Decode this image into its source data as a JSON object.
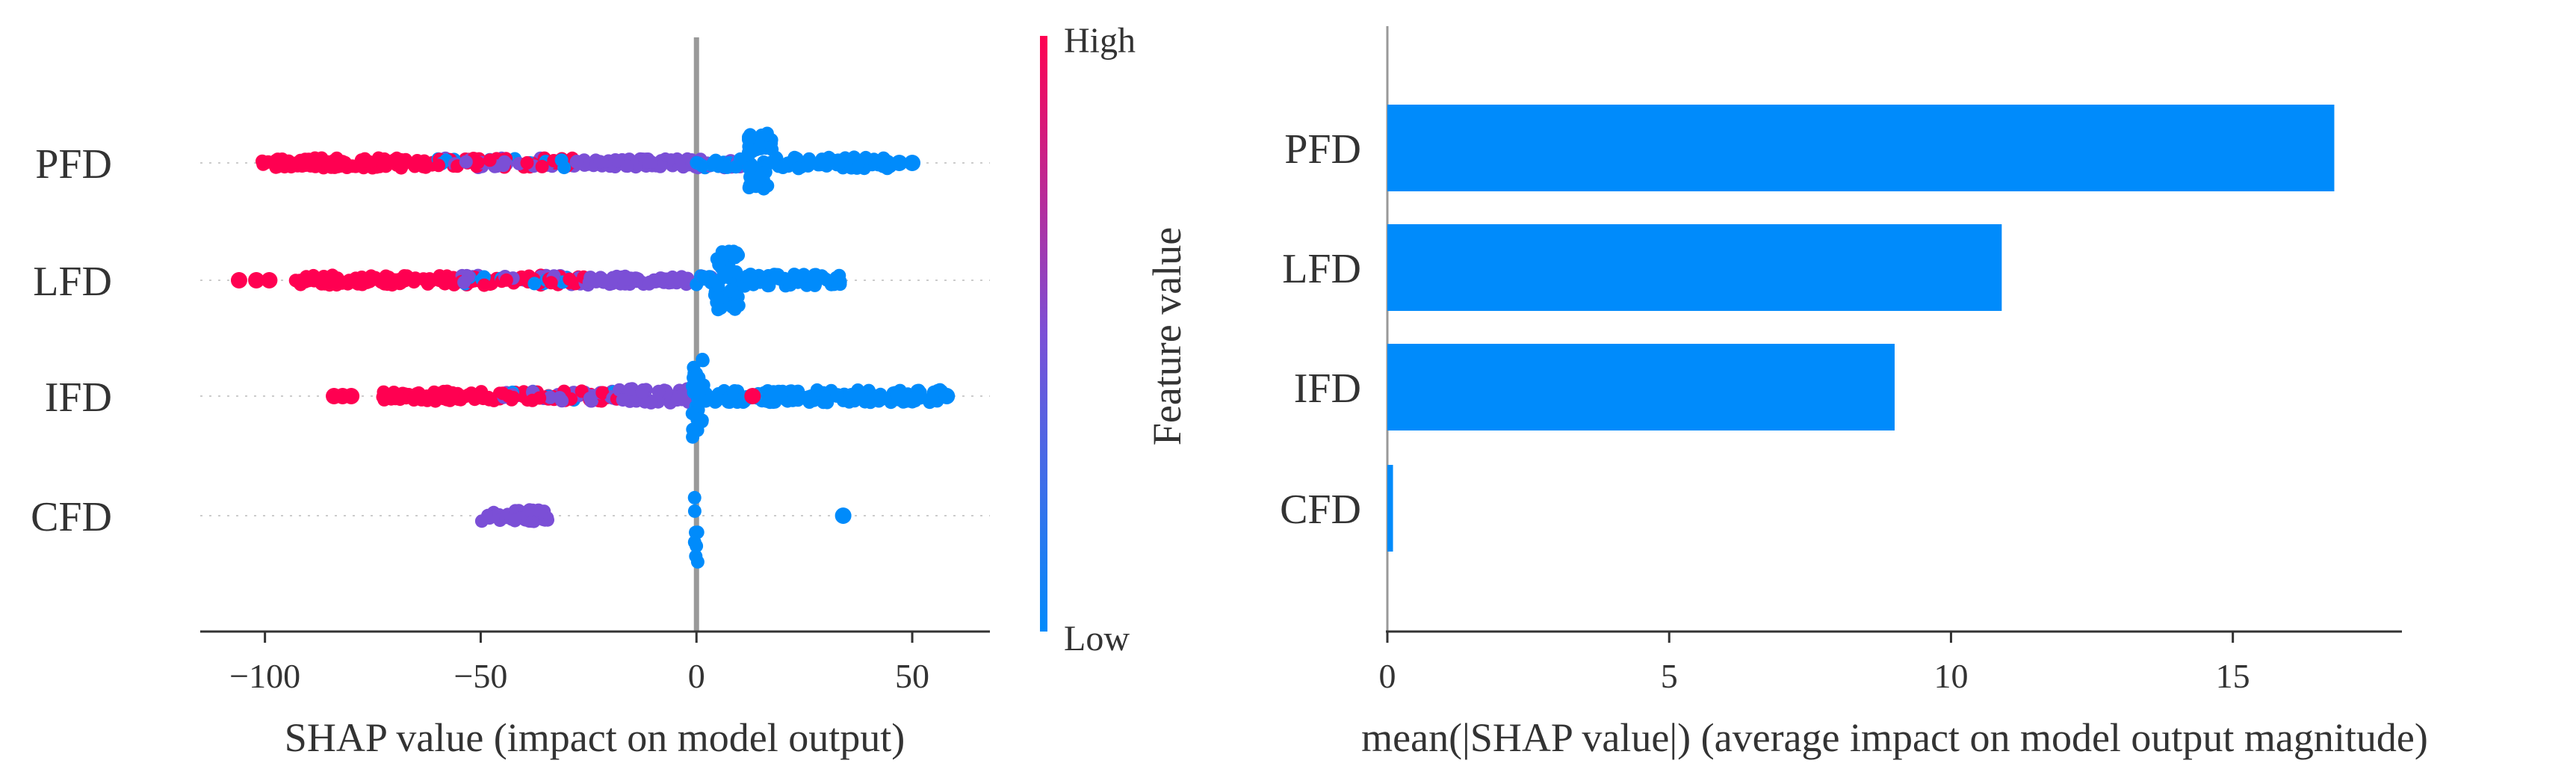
{
  "chart_data": [
    {
      "type": "scatter",
      "subtype": "shap-beeswarm",
      "xlabel": "SHAP value (impact on model output)",
      "xlim": [
        -115,
        68
      ],
      "xticks": [
        -100,
        -50,
        0,
        50
      ],
      "xtick_labels": [
        "−100",
        "−50",
        "0",
        "50"
      ],
      "zero_line": 0,
      "features": [
        "PFD",
        "LFD",
        "IFD",
        "CFD"
      ],
      "colors": {
        "high": "#ff0051",
        "mid": "#7b4fd6",
        "low": "#008bfb"
      },
      "colorbar": {
        "title": "Feature value",
        "high_label": "High",
        "low_label": "Low"
      },
      "series": [
        {
          "name": "PFD",
          "segments": [
            {
              "from": -101,
              "to": -60,
              "color": "high",
              "spread": 0.1
            },
            {
              "from": -60,
              "to": -28,
              "color": "mix",
              "spread": 0.1
            },
            {
              "from": -28,
              "to": 0,
              "color": "mid",
              "spread": 0.08
            },
            {
              "from": 0,
              "to": 12,
              "color": "mixlow",
              "spread": 0.1
            },
            {
              "from": 12,
              "to": 18,
              "color": "low",
              "spread": 0.6
            },
            {
              "from": 18,
              "to": 45,
              "color": "low",
              "spread": 0.12
            }
          ],
          "outliers": [
            {
              "x": 47,
              "color": "low"
            },
            {
              "x": 50,
              "color": "low"
            }
          ]
        },
        {
          "name": "LFD",
          "segments": [
            {
              "from": -93,
              "to": -55,
              "color": "high",
              "spread": 0.1
            },
            {
              "from": -55,
              "to": -25,
              "color": "mix",
              "spread": 0.1
            },
            {
              "from": -25,
              "to": 0,
              "color": "mid",
              "spread": 0.08
            },
            {
              "from": 0,
              "to": 4,
              "color": "mixlow",
              "spread": 0.1
            },
            {
              "from": 4,
              "to": 10,
              "color": "low",
              "spread": 0.6
            },
            {
              "from": 10,
              "to": 34,
              "color": "low",
              "spread": 0.12
            }
          ],
          "outliers": [
            {
              "x": -106,
              "color": "high"
            },
            {
              "x": -102,
              "color": "high"
            },
            {
              "x": -99,
              "color": "high"
            }
          ]
        },
        {
          "name": "IFD",
          "segments": [
            {
              "from": -73,
              "to": -45,
              "color": "high",
              "spread": 0.1
            },
            {
              "from": -45,
              "to": -18,
              "color": "mix",
              "spread": 0.1
            },
            {
              "from": -18,
              "to": -1,
              "color": "mid",
              "spread": 0.15
            },
            {
              "from": -1,
              "to": 2,
              "color": "low",
              "spread": 0.85
            },
            {
              "from": 2,
              "to": 57,
              "color": "low",
              "spread": 0.13
            }
          ],
          "outliers": [
            {
              "x": -84,
              "color": "high"
            },
            {
              "x": -82,
              "color": "high"
            },
            {
              "x": -80,
              "color": "high"
            },
            {
              "x": 13,
              "color": "high"
            },
            {
              "x": 58,
              "color": "low"
            }
          ]
        },
        {
          "name": "CFD",
          "segments": [
            {
              "from": -50,
              "to": -34,
              "color": "mid",
              "spread": 0.12
            },
            {
              "from": -0.5,
              "to": 0.5,
              "color": "low",
              "spread": 0.95
            }
          ],
          "outliers": [
            {
              "x": 34,
              "color": "low"
            }
          ]
        }
      ]
    },
    {
      "type": "bar",
      "orientation": "horizontal",
      "categories": [
        "PFD",
        "LFD",
        "IFD",
        "CFD"
      ],
      "values": [
        16.8,
        10.9,
        9.0,
        0.1
      ],
      "color": "#008bfb",
      "xlabel": "mean(|SHAP value|) (average impact on model output magnitude)",
      "ylabel": "Feature value",
      "xlim": [
        0,
        18
      ],
      "xticks": [
        0,
        5,
        10,
        15
      ],
      "xtick_labels": [
        "0",
        "5",
        "10",
        "15"
      ]
    }
  ]
}
